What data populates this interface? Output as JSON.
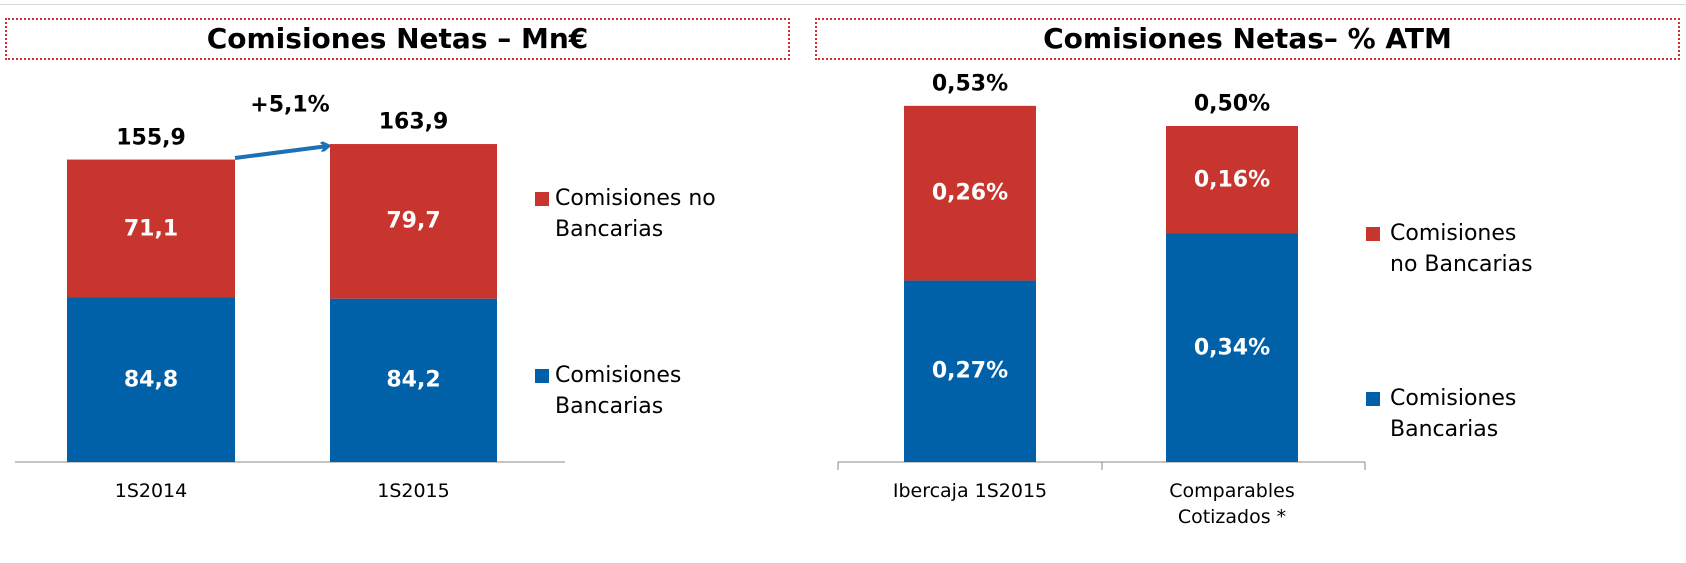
{
  "chart_data": [
    {
      "type": "stacked-bar",
      "title": "Comisiones Netas – Mn€",
      "categories": [
        "1S2014",
        "1S2015"
      ],
      "series": [
        {
          "name": "Comisiones Bancarias",
          "color": "#0060a8",
          "values": [
            84.8,
            84.2
          ],
          "value_labels": [
            "84,8",
            "84,2"
          ]
        },
        {
          "name": "Comisiones no Bancarias",
          "color": "#c8352e",
          "values": [
            71.1,
            79.7
          ],
          "value_labels": [
            "71,1",
            "79,7"
          ]
        }
      ],
      "totals": [
        155.9,
        163.9
      ],
      "total_labels": [
        "155,9",
        "163,9"
      ],
      "annotation": "+5,1%"
    },
    {
      "type": "stacked-bar",
      "title": "Comisiones Netas– % ATM",
      "categories": [
        "Ibercaja 1S2015",
        "Comparables Cotizados *"
      ],
      "series": [
        {
          "name": "Comisiones Bancarias",
          "color": "#0060a8",
          "values": [
            0.27,
            0.34
          ],
          "value_labels": [
            "0,27%",
            "0,34%"
          ]
        },
        {
          "name": "Comisiones no Bancarias",
          "color": "#c8352e",
          "values": [
            0.26,
            0.16
          ],
          "value_labels": [
            "0,26%",
            "0,16%"
          ]
        }
      ],
      "totals": [
        0.53,
        0.5
      ],
      "total_labels": [
        "0,53%",
        "0,50%"
      ]
    }
  ]
}
